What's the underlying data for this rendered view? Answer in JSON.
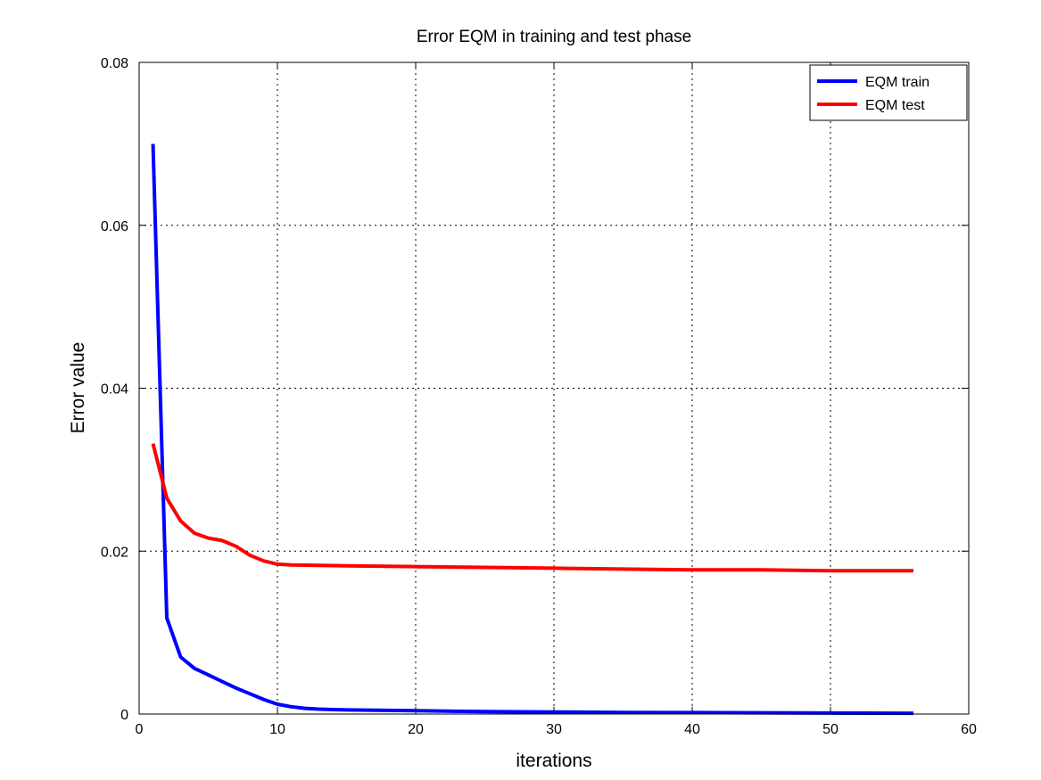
{
  "chart_data": {
    "type": "line",
    "title": "Error EQM in training and test phase",
    "xlabel": "iterations",
    "ylabel": "Error value",
    "xlim": [
      0,
      60
    ],
    "ylim": [
      0,
      0.08
    ],
    "xticks": [
      0,
      10,
      20,
      30,
      40,
      50,
      60
    ],
    "xtick_labels": [
      "0",
      "10",
      "20",
      "30",
      "40",
      "50",
      "60"
    ],
    "yticks": [
      0,
      0.02,
      0.04,
      0.06,
      0.08
    ],
    "ytick_labels": [
      "0",
      "0.02",
      "0.04",
      "0.06",
      "0.08"
    ],
    "grid": true,
    "legend_position": "top-right",
    "series": [
      {
        "name": "EQM train",
        "color": "#0000ff",
        "x": [
          1,
          2,
          3,
          4,
          5,
          6,
          7,
          8,
          9,
          10,
          11,
          12,
          13,
          15,
          20,
          25,
          30,
          35,
          40,
          45,
          50,
          56
        ],
        "y": [
          0.07,
          0.0118,
          0.007,
          0.0056,
          0.0048,
          0.004,
          0.0032,
          0.0025,
          0.0018,
          0.0012,
          0.0009,
          0.0007,
          0.0006,
          0.0005,
          0.0004,
          0.0003,
          0.00025,
          0.0002,
          0.00018,
          0.00015,
          0.00012,
          0.0001
        ]
      },
      {
        "name": "EQM test",
        "color": "#ff0000",
        "x": [
          1,
          2,
          3,
          4,
          5,
          6,
          7,
          8,
          9,
          10,
          11,
          15,
          20,
          25,
          30,
          35,
          40,
          45,
          50,
          56
        ],
        "y": [
          0.0332,
          0.0265,
          0.0237,
          0.0222,
          0.0216,
          0.0213,
          0.0206,
          0.0195,
          0.0188,
          0.0184,
          0.0183,
          0.0182,
          0.0181,
          0.018,
          0.0179,
          0.0178,
          0.0177,
          0.0177,
          0.0176,
          0.0176
        ]
      }
    ]
  }
}
